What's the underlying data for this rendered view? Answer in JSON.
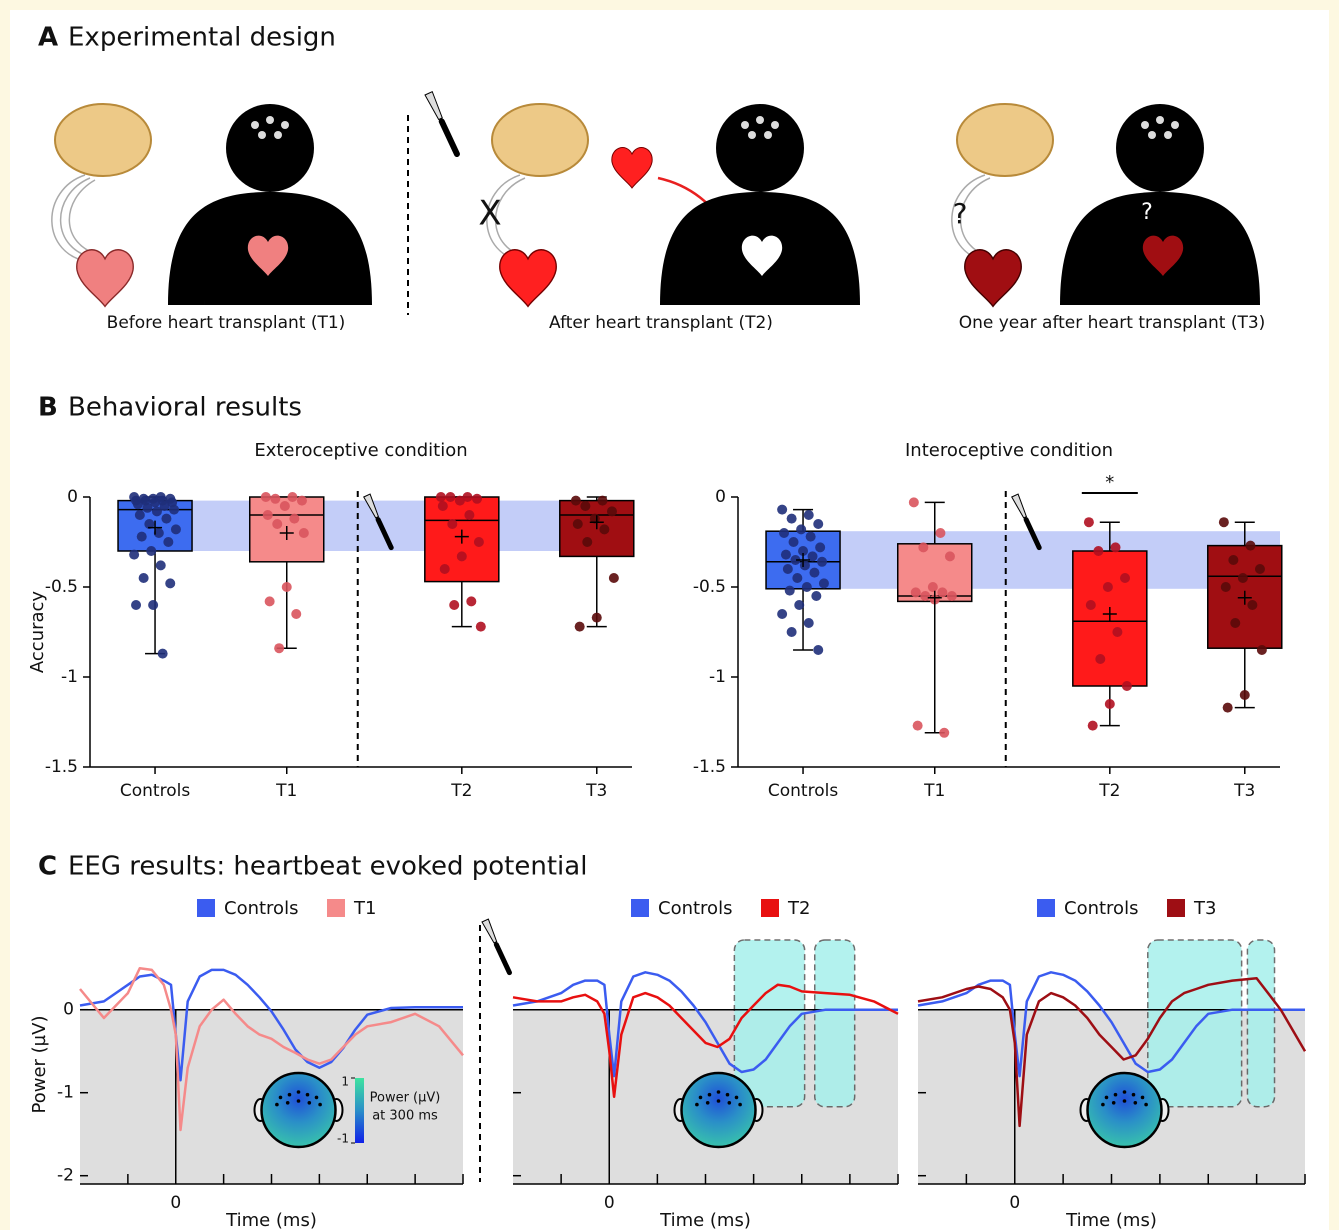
{
  "figure": {
    "panels": [
      {
        "letter": "A",
        "title": "Experimental design"
      },
      {
        "letter": "B",
        "title": "Behavioral results"
      },
      {
        "letter": "C",
        "title": "EEG results: heartbeat evoked potential"
      }
    ],
    "design_captions": [
      "Before heart transplant (T1)",
      "After heart transplant (T2)",
      "One year after heart transplant (T3)"
    ],
    "design_marks": [
      "X",
      "?",
      "?"
    ],
    "colorbar": {
      "ticks": [
        1,
        -1
      ],
      "title": "Power (µV)",
      "subtitle": "at 300 ms"
    }
  },
  "chart_data": [
    {
      "type": "box",
      "title": "Exteroceptive condition",
      "ylabel": "Accuracy",
      "categories": [
        "Controls",
        "T1",
        "T2",
        "T3"
      ],
      "ylim": [
        -1.5,
        0
      ],
      "yticks": [
        0,
        -0.5,
        -1,
        -1.5
      ],
      "boxes": [
        {
          "min": -0.87,
          "q1": -0.3,
          "median": -0.07,
          "q3": -0.02,
          "max": 0,
          "mean": -0.17,
          "color": "#3d6cf0",
          "point_color": "#1f2f7a",
          "points": [
            0,
            0,
            -0.01,
            -0.01,
            -0.01,
            -0.02,
            -0.02,
            -0.02,
            -0.03,
            -0.03,
            -0.04,
            -0.05,
            -0.06,
            -0.07,
            -0.08,
            -0.1,
            -0.12,
            -0.15,
            -0.18,
            -0.2,
            -0.22,
            -0.25,
            -0.3,
            -0.32,
            -0.38,
            -0.45,
            -0.48,
            -0.6,
            -0.6,
            -0.87
          ]
        },
        {
          "min": -0.84,
          "q1": -0.36,
          "median": -0.1,
          "q3": 0,
          "max": 0,
          "mean": -0.2,
          "color": "#f58a8a",
          "point_color": "#d9545d",
          "points": [
            0,
            0,
            -0.01,
            -0.02,
            -0.05,
            -0.1,
            -0.12,
            -0.15,
            -0.2,
            -0.5,
            -0.58,
            -0.65,
            -0.84
          ]
        },
        {
          "min": -0.72,
          "q1": -0.47,
          "median": -0.13,
          "q3": 0,
          "max": 0,
          "mean": -0.22,
          "color": "#ff1a1a",
          "point_color": "#b01020",
          "points": [
            0,
            0,
            0,
            -0.01,
            -0.02,
            -0.05,
            -0.1,
            -0.15,
            -0.25,
            -0.33,
            -0.4,
            -0.58,
            -0.6,
            -0.72
          ]
        },
        {
          "min": -0.72,
          "q1": -0.33,
          "median": -0.1,
          "q3": -0.02,
          "max": 0,
          "mean": -0.14,
          "color": "#a00e12",
          "point_color": "#5a0a0a",
          "points": [
            -0.02,
            -0.02,
            -0.05,
            -0.08,
            -0.12,
            -0.15,
            -0.18,
            -0.25,
            -0.45,
            -0.67,
            -0.72
          ]
        }
      ]
    },
    {
      "type": "box",
      "title": "Interoceptive condition",
      "categories": [
        "Controls",
        "T1",
        "T2",
        "T3"
      ],
      "ylim": [
        -1.5,
        0
      ],
      "yticks": [
        0,
        -0.5,
        -1,
        -1.5
      ],
      "significance": {
        "text": "*",
        "category": "T2"
      },
      "boxes": [
        {
          "min": -0.85,
          "q1": -0.51,
          "median": -0.36,
          "q3": -0.19,
          "max": -0.07,
          "mean": -0.35,
          "color": "#3d6cf0",
          "point_color": "#1f2f7a",
          "points": [
            -0.07,
            -0.1,
            -0.12,
            -0.15,
            -0.18,
            -0.2,
            -0.22,
            -0.25,
            -0.28,
            -0.3,
            -0.32,
            -0.33,
            -0.35,
            -0.36,
            -0.38,
            -0.4,
            -0.42,
            -0.45,
            -0.48,
            -0.5,
            -0.52,
            -0.55,
            -0.6,
            -0.65,
            -0.7,
            -0.75,
            -0.85
          ]
        },
        {
          "min": -1.31,
          "q1": -0.58,
          "median": -0.55,
          "q3": -0.26,
          "max": -0.03,
          "mean": -0.56,
          "color": "#f58a8a",
          "point_color": "#d9545d",
          "points": [
            -0.03,
            -0.2,
            -0.28,
            -0.33,
            -0.5,
            -0.53,
            -0.53,
            -0.55,
            -0.55,
            -0.57,
            -1.27,
            -1.31
          ]
        },
        {
          "min": -1.27,
          "q1": -1.05,
          "median": -0.69,
          "q3": -0.3,
          "max": -0.14,
          "mean": -0.65,
          "color": "#ff1a1a",
          "point_color": "#b01020",
          "points": [
            -0.14,
            -0.28,
            -0.3,
            -0.45,
            -0.5,
            -0.6,
            -0.75,
            -0.9,
            -1.05,
            -1.15,
            -1.27
          ]
        },
        {
          "min": -1.17,
          "q1": -0.84,
          "median": -0.44,
          "q3": -0.27,
          "max": -0.14,
          "mean": -0.56,
          "color": "#a00e12",
          "point_color": "#5a0a0a",
          "points": [
            -0.14,
            -0.27,
            -0.35,
            -0.4,
            -0.45,
            -0.5,
            -0.6,
            -0.7,
            -0.85,
            -1.1,
            -1.17
          ]
        }
      ]
    },
    {
      "type": "line",
      "xlabel": "Time (ms)",
      "ylabel": "Power (µV)",
      "x": [
        -200,
        -150,
        -100,
        -75,
        -50,
        -25,
        -10,
        0,
        10,
        25,
        50,
        75,
        100,
        125,
        150,
        175,
        200,
        225,
        250,
        275,
        300,
        325,
        350,
        375,
        400,
        450,
        500,
        550,
        600
      ],
      "xlim": [
        -200,
        600
      ],
      "xticks": [
        0
      ],
      "xminorticks": [
        -100,
        100,
        200,
        300,
        400,
        500,
        600
      ],
      "ylim": [
        -2.1,
        0.9
      ],
      "yticks": [
        0,
        -1,
        -2
      ],
      "series": [
        {
          "name": "Controls",
          "color": "#3b5cf0",
          "values": [
            0.05,
            0.1,
            0.3,
            0.4,
            0.42,
            0.35,
            0.3,
            -0.3,
            -0.85,
            0.1,
            0.4,
            0.48,
            0.48,
            0.42,
            0.3,
            0.15,
            -0.02,
            -0.24,
            -0.48,
            -0.63,
            -0.7,
            -0.63,
            -0.46,
            -0.24,
            -0.06,
            0.02,
            0.03,
            0.03,
            0.03
          ]
        },
        {
          "name": "T1",
          "color": "#f58a8a",
          "values": [
            0.25,
            -0.1,
            0.2,
            0.5,
            0.48,
            0.3,
            0,
            -0.3,
            -1.45,
            -0.7,
            -0.2,
            0,
            0.12,
            -0.05,
            -0.2,
            -0.3,
            -0.35,
            -0.45,
            -0.52,
            -0.6,
            -0.65,
            -0.6,
            -0.45,
            -0.3,
            -0.2,
            -0.15,
            -0.05,
            -0.2,
            -0.55
          ]
        }
      ]
    },
    {
      "type": "line",
      "xlabel": "Time (ms)",
      "x": [
        -200,
        -150,
        -100,
        -75,
        -50,
        -25,
        -10,
        0,
        10,
        25,
        50,
        75,
        100,
        125,
        150,
        175,
        200,
        225,
        250,
        275,
        300,
        325,
        350,
        375,
        400,
        450,
        500,
        550,
        600
      ],
      "xlim": [
        -200,
        600
      ],
      "xticks": [
        0
      ],
      "xminorticks": [
        -100,
        100,
        200,
        300,
        400,
        500,
        600
      ],
      "ylim": [
        -2.1,
        0.9
      ],
      "yminorticks": [
        -1,
        -2
      ],
      "windows": [
        [
          260,
          406
        ],
        [
          427,
          510
        ]
      ],
      "series": [
        {
          "name": "Controls",
          "color": "#3b5cf0",
          "values": [
            0.05,
            0.1,
            0.2,
            0.3,
            0.35,
            0.35,
            0.3,
            -0.3,
            -0.8,
            0.1,
            0.4,
            0.45,
            0.42,
            0.35,
            0.22,
            0.05,
            -0.15,
            -0.4,
            -0.65,
            -0.75,
            -0.72,
            -0.6,
            -0.4,
            -0.2,
            -0.05,
            0,
            0,
            0,
            0
          ]
        },
        {
          "name": "T2",
          "color": "#e81010",
          "values": [
            0.15,
            0.1,
            0.1,
            0.15,
            0.18,
            0.1,
            -0.05,
            -0.5,
            -1.05,
            -0.3,
            0.15,
            0.2,
            0.15,
            0.05,
            -0.1,
            -0.25,
            -0.4,
            -0.45,
            -0.35,
            -0.1,
            0.05,
            0.2,
            0.3,
            0.28,
            0.22,
            0.2,
            0.18,
            0.1,
            -0.05
          ]
        }
      ]
    },
    {
      "type": "line",
      "xlabel": "Time (ms)",
      "x": [
        -200,
        -150,
        -100,
        -75,
        -50,
        -25,
        -10,
        0,
        10,
        25,
        50,
        75,
        100,
        125,
        150,
        175,
        200,
        225,
        250,
        275,
        300,
        325,
        350,
        375,
        400,
        450,
        500,
        550,
        600
      ],
      "xlim": [
        -200,
        600
      ],
      "xticks": [
        0
      ],
      "xminorticks": [
        -100,
        100,
        200,
        300,
        400,
        500,
        600
      ],
      "ylim": [
        -2.1,
        0.9
      ],
      "yminorticks": [
        -1,
        -2
      ],
      "windows": [
        [
          275,
          469
        ],
        [
          481,
          537
        ]
      ],
      "series": [
        {
          "name": "Controls",
          "color": "#3b5cf0",
          "values": [
            0.05,
            0.1,
            0.2,
            0.3,
            0.35,
            0.35,
            0.3,
            -0.3,
            -0.8,
            0.1,
            0.4,
            0.45,
            0.42,
            0.35,
            0.22,
            0.05,
            -0.15,
            -0.4,
            -0.65,
            -0.75,
            -0.72,
            -0.6,
            -0.4,
            -0.2,
            -0.05,
            0,
            0,
            0,
            0
          ]
        },
        {
          "name": "T3",
          "color": "#9e0e14",
          "values": [
            0.1,
            0.15,
            0.25,
            0.28,
            0.25,
            0.15,
            0,
            -0.4,
            -1.4,
            -0.3,
            0.1,
            0.2,
            0.15,
            0.05,
            -0.1,
            -0.3,
            -0.45,
            -0.6,
            -0.55,
            -0.35,
            -0.1,
            0.1,
            0.2,
            0.25,
            0.3,
            0.35,
            0.38,
            0,
            -0.5
          ]
        }
      ]
    }
  ]
}
